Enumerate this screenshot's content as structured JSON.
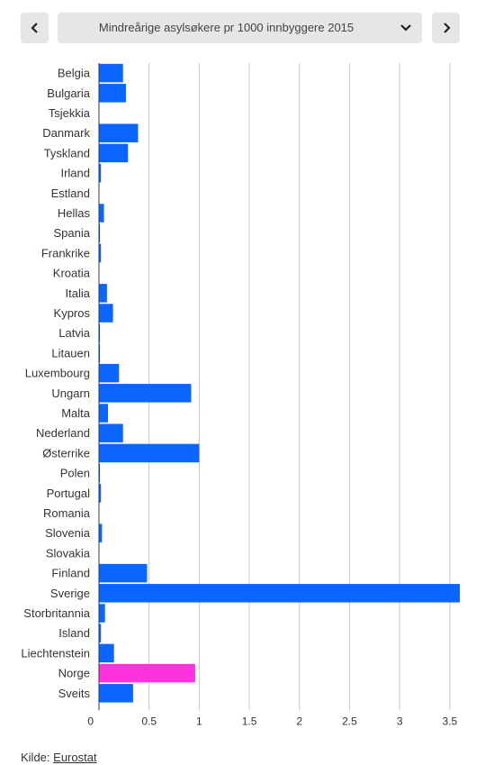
{
  "nav": {
    "prev_icon": "chevron-left-icon",
    "next_icon": "chevron-right-icon"
  },
  "selector": {
    "selected": "Mindreårige asylsøkere pr 1000 innbyggere 2015",
    "icon": "chevron-down-icon"
  },
  "chart_data": {
    "type": "bar",
    "orientation": "horizontal",
    "title": "",
    "xlabel": "",
    "ylabel": "",
    "xlim": [
      0,
      3.6
    ],
    "x_ticks": [
      0,
      0.5,
      1,
      1.5,
      2,
      2.5,
      3,
      3.5
    ],
    "x_tick_labels": [
      "0",
      "0.5",
      "1",
      "1.5",
      "2",
      "2.5",
      "3",
      "3.5"
    ],
    "grid": true,
    "categories": [
      "Belgia",
      "Bulgaria",
      "Tsjekkia",
      "Danmark",
      "Tyskland",
      "Irland",
      "Estland",
      "Hellas",
      "Spania",
      "Frankrike",
      "Kroatia",
      "Italia",
      "Kypros",
      "Latvia",
      "Litauen",
      "Luxembourg",
      "Ungarn",
      "Malta",
      "Nederland",
      "Østerrike",
      "Polen",
      "Portugal",
      "Romania",
      "Slovenia",
      "Slovakia",
      "Finland",
      "Sverige",
      "Storbritannia",
      "Island",
      "Liechtenstein",
      "Norge",
      "Sveits"
    ],
    "values": [
      0.24,
      0.27,
      0.0,
      0.39,
      0.29,
      0.02,
      0.0,
      0.05,
      0.01,
      0.02,
      0.0,
      0.08,
      0.14,
      0.01,
      0.01,
      0.2,
      0.92,
      0.09,
      0.24,
      1.0,
      0.01,
      0.02,
      0.0,
      0.03,
      0.0,
      0.48,
      3.6,
      0.06,
      0.02,
      0.15,
      0.96,
      0.34
    ],
    "bar_color": "#0a66ff",
    "highlight": {
      "category": "Norge",
      "color": "#ff33dd"
    },
    "grid_color": "#c8c8c8"
  },
  "footer": {
    "source_label": "Kilde:",
    "source_link": "Eurostat"
  }
}
